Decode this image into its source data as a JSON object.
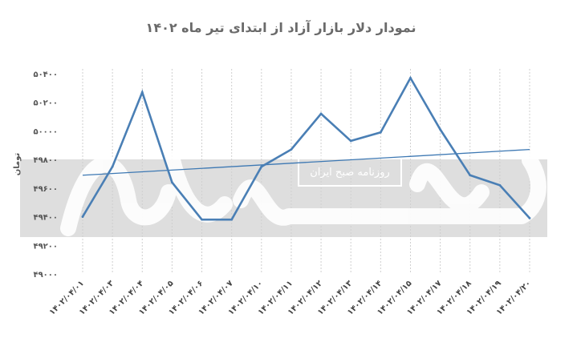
{
  "chart_data": {
    "type": "line",
    "title": "نمودار دلار بازار آزاد از ابتدای تیر ماه ۱۴۰۲",
    "ylabel": "تومان",
    "xlabel": "",
    "ylim": [
      49000,
      50400
    ],
    "yticks": [
      49000,
      49200,
      49400,
      49600,
      49800,
      50000,
      50200,
      50400
    ],
    "ytick_labels": [
      "۴۹۰۰۰",
      "۴۹۲۰۰",
      "۴۹۴۰۰",
      "۴۹۶۰۰",
      "۴۹۸۰۰",
      "۵۰۰۰۰",
      "۵۰۲۰۰",
      "۵۰۴۰۰"
    ],
    "categories": [
      "۱۴۰۲/۰۴/۰۱",
      "۱۴۰۲/۰۴/۰۳",
      "۱۴۰۲/۰۴/۰۴",
      "۱۴۰۲/۰۴/۰۵",
      "۱۴۰۲/۰۴/۰۶",
      "۱۴۰۲/۰۴/۰۷",
      "۱۴۰۲/۰۴/۱۰",
      "۱۴۰۲/۰۴/۱۱",
      "۱۴۰۲/۰۴/۱۲",
      "۱۴۰۲/۰۴/۱۳",
      "۱۴۰۲/۰۴/۱۴",
      "۱۴۰۲/۰۴/۱۵",
      "۱۴۰۲/۰۴/۱۷",
      "۱۴۰۲/۰۴/۱۸",
      "۱۴۰۲/۰۴/۱۹",
      "۱۴۰۲/۰۴/۲۰"
    ],
    "series": [
      {
        "values": [
          49400,
          49750,
          50270,
          49640,
          49380,
          49380,
          49750,
          49870,
          50120,
          49930,
          49990,
          50370,
          50010,
          49690,
          49620,
          49390
        ]
      }
    ],
    "trendline": {
      "start": 49690,
      "end": 49870
    },
    "grid": {
      "vertical": true,
      "horizontal": false
    },
    "colors": {
      "line": "#4a7fb5",
      "trend": "#3d78b3",
      "grid": "#cfcfcf",
      "band": "#d8d8d8"
    }
  },
  "watermark": {
    "logo_text": "دنیای اقتصاد",
    "stamp_text": "روزنامه صبح ایران"
  }
}
